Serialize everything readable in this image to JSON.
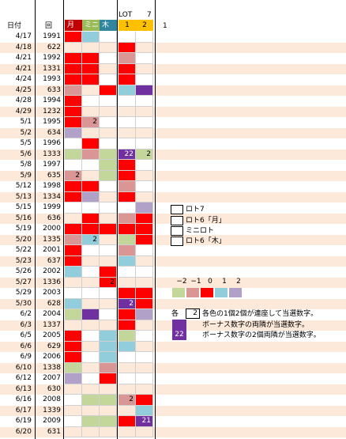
{
  "headers": {
    "lot": "LOT",
    "seven": "7",
    "date": "日付",
    "round": "回",
    "getsu": "月",
    "mini": "ミニ",
    "moku": "木",
    "one": "1",
    "two": "2",
    "extra": "1"
  },
  "colors": {
    "red": "#ff0000",
    "pink": "#da9694",
    "lightblue": "#92cddc",
    "lavender": "#b1a0c7",
    "green": "#c4d79b",
    "purple": "#7030a0",
    "peach": "#fde9d9"
  },
  "rows": [
    {
      "date": "4/17",
      "round": "1991",
      "cells": [
        "red",
        "lightblue",
        "",
        "",
        ""
      ],
      "peach": false
    },
    {
      "date": "4/18",
      "round": "622",
      "cells": [
        "",
        "",
        "",
        "red",
        ""
      ],
      "peach": true
    },
    {
      "date": "4/21",
      "round": "1992",
      "cells": [
        "red",
        "red",
        "",
        "pink",
        ""
      ],
      "peach": false
    },
    {
      "date": "4/21",
      "round": "1331",
      "cells": [
        "red",
        "red",
        "",
        "red",
        ""
      ],
      "peach": true
    },
    {
      "date": "4/24",
      "round": "1993",
      "cells": [
        "red",
        "red",
        "",
        "red",
        ""
      ],
      "peach": false
    },
    {
      "date": "4/25",
      "round": "633",
      "cells": [
        "pink",
        "",
        "red",
        "lightblue",
        "purple"
      ],
      "peach": true
    },
    {
      "date": "4/28",
      "round": "1994",
      "cells": [
        "red",
        "",
        "",
        "",
        ""
      ],
      "peach": false
    },
    {
      "date": "4/29",
      "round": "1232",
      "cells": [
        "red",
        "",
        "",
        "",
        ""
      ],
      "peach": true
    },
    {
      "date": "5/1",
      "round": "1995",
      "cells": [
        "red",
        "pink",
        "",
        "",
        ""
      ],
      "peach": false,
      "nums": {
        "1": "2"
      }
    },
    {
      "date": "5/2",
      "round": "634",
      "cells": [
        "lavender",
        "",
        "",
        "",
        ""
      ],
      "peach": true
    },
    {
      "date": "5/5",
      "round": "1996",
      "cells": [
        "",
        "red",
        "",
        "",
        ""
      ],
      "peach": false
    },
    {
      "date": "5/6",
      "round": "1333",
      "cells": [
        "green",
        "pink",
        "green",
        "purple",
        "green"
      ],
      "peach": true,
      "nums": {
        "3": "22",
        "4": "2"
      }
    },
    {
      "date": "5/8",
      "round": "1997",
      "cells": [
        "",
        "",
        "green",
        "red",
        ""
      ],
      "peach": false
    },
    {
      "date": "5/9",
      "round": "635",
      "cells": [
        "pink",
        "",
        "green",
        "red",
        ""
      ],
      "peach": true,
      "nums": {
        "0": "2"
      }
    },
    {
      "date": "5/12",
      "round": "1998",
      "cells": [
        "red",
        "red",
        "",
        "pink",
        ""
      ],
      "peach": false
    },
    {
      "date": "5/13",
      "round": "1334",
      "cells": [
        "red",
        "lavender",
        "",
        "red",
        ""
      ],
      "peach": true
    },
    {
      "date": "5/15",
      "round": "1999",
      "cells": [
        "",
        "",
        "",
        "",
        "lavender"
      ],
      "peach": false
    },
    {
      "date": "5/16",
      "round": "636",
      "cells": [
        "",
        "red",
        "",
        "pink",
        "red"
      ],
      "peach": true
    },
    {
      "date": "5/19",
      "round": "2000",
      "cells": [
        "red",
        "red",
        "red",
        "red",
        "red"
      ],
      "peach": false
    },
    {
      "date": "5/20",
      "round": "1335",
      "cells": [
        "pink",
        "lightblue",
        "",
        "green",
        "red"
      ],
      "peach": true,
      "nums": {
        "1": "2"
      }
    },
    {
      "date": "5/22",
      "round": "2001",
      "cells": [
        "red",
        "",
        "",
        "pink",
        ""
      ],
      "peach": false
    },
    {
      "date": "5/23",
      "round": "637",
      "cells": [
        "red",
        "",
        "",
        "lightblue",
        ""
      ],
      "peach": true
    },
    {
      "date": "5/26",
      "round": "2002",
      "cells": [
        "lightblue",
        "",
        "red",
        "",
        ""
      ],
      "peach": false
    },
    {
      "date": "5/27",
      "round": "1336",
      "cells": [
        "",
        "",
        "red",
        "",
        ""
      ],
      "peach": true,
      "nums": {
        "2": "2"
      }
    },
    {
      "date": "5/29",
      "round": "2003",
      "cells": [
        "",
        "",
        "",
        "red",
        "red"
      ],
      "peach": false
    },
    {
      "date": "5/30",
      "round": "628",
      "cells": [
        "lightblue",
        "",
        "",
        "purple",
        "red"
      ],
      "peach": true,
      "nums": {
        "3": "2"
      }
    },
    {
      "date": "6/2",
      "round": "2004",
      "cells": [
        "green",
        "purple",
        "",
        "red",
        "lavender"
      ],
      "peach": false
    },
    {
      "date": "6/3",
      "round": "1337",
      "cells": [
        "",
        "",
        "",
        "red",
        ""
      ],
      "peach": true
    },
    {
      "date": "6/5",
      "round": "2005",
      "cells": [
        "red",
        "",
        "lightblue",
        "green",
        ""
      ],
      "peach": false
    },
    {
      "date": "6/6",
      "round": "629",
      "cells": [
        "red",
        "",
        "lightblue",
        "lightblue",
        ""
      ],
      "peach": true
    },
    {
      "date": "6/9",
      "round": "2006",
      "cells": [
        "red",
        "",
        "lightblue",
        "",
        ""
      ],
      "peach": false
    },
    {
      "date": "6/10",
      "round": "1338",
      "cells": [
        "green",
        "",
        "pink",
        "",
        ""
      ],
      "peach": true
    },
    {
      "date": "6/12",
      "round": "2007",
      "cells": [
        "lavender",
        "",
        "red",
        "",
        ""
      ],
      "peach": false
    },
    {
      "date": "6/13",
      "round": "630",
      "cells": [
        "",
        "",
        "",
        "",
        ""
      ],
      "peach": true
    },
    {
      "date": "6/16",
      "round": "2008",
      "cells": [
        "",
        "green",
        "green",
        "pink",
        "red"
      ],
      "peach": false,
      "nums": {
        "3": "2"
      }
    },
    {
      "date": "6/17",
      "round": "1339",
      "cells": [
        "",
        "",
        "",
        "",
        "lightblue"
      ],
      "peach": true
    },
    {
      "date": "6/19",
      "round": "2009",
      "cells": [
        "",
        "green",
        "green",
        "red",
        "purple"
      ],
      "peach": false,
      "nums": {
        "4": "21"
      }
    },
    {
      "date": "6/20",
      "round": "631",
      "cells": [
        "",
        "",
        "",
        "",
        ""
      ],
      "peach": true
    }
  ],
  "legend": [
    "ロト7",
    "ロト6「月」",
    "ミニロト",
    "ロト6「木」"
  ],
  "offset_scale": {
    "labels": [
      "−2",
      "−1",
      "0",
      "1",
      "2"
    ]
  },
  "notes": {
    "each_label": "各",
    "count": "2",
    "line1": "各色の1個2個が連座して当選数字。",
    "line2": "ボーナス数字の両隣が当選数字。",
    "num22": "22",
    "line3": "ボーナス数字の2個両隣が当選数字。"
  }
}
